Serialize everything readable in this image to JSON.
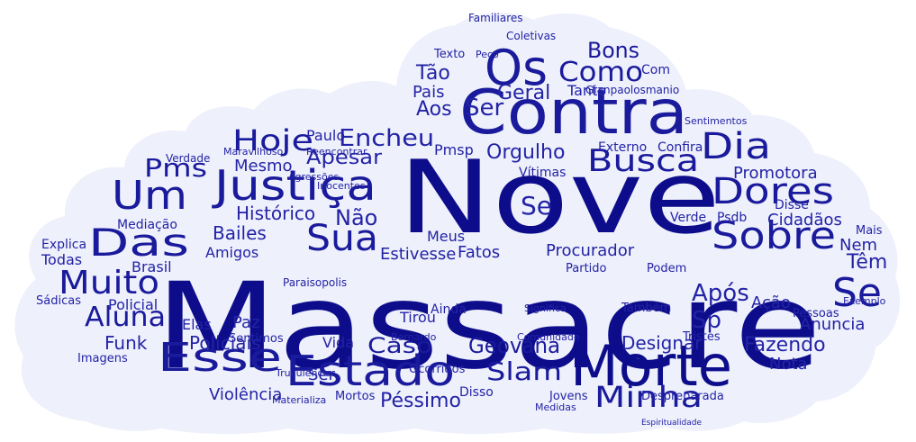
{
  "colors": {
    "background": "#ffffff",
    "cloud_fill": "#eef0fb",
    "word_dark": "#0d0d8c",
    "word_mid": "#2323a6",
    "word_light": "#3a3ab8"
  },
  "words": {
    "massacre": "Massacre",
    "nove": "Nove",
    "contra": "Contra",
    "os": "Os",
    "morte": "Morte",
    "esse": "Esse",
    "estado": "Estado",
    "justica": "Justiça",
    "das": "Das",
    "um": "Um",
    "muito": "Muito",
    "hoje": "Hoje",
    "aluna": "Aluna",
    "pms": "Pms",
    "sua": "Sua",
    "sobre": "Sobre",
    "dores": "Dores",
    "dia": "Dia",
    "busca": "Busca",
    "como": "Como",
    "bons": "Bons",
    "minha": "Minha",
    "geovana": "Geovana",
    "slam": "Slam",
    "caso": "Caso",
    "se": "Se",
    "ser": "Ser",
    "encheu": "Encheu",
    "apesar": "Apesar",
    "nao": "Não",
    "bailes": "Bailes",
    "historico": "Histórico",
    "funk": "Funk",
    "policiais": "Policiais",
    "violencia": "Violência",
    "pessimo": "Péssimo",
    "designar": "Designar",
    "fazendo": "Fazendo",
    "nota": "Nota",
    "apos": "Após",
    "sp": "Sp",
    "cidadaos": "Cidadãos",
    "tem": "Têm",
    "nem": "Nem",
    "anuncia": "Anuncia",
    "promotora": "Promotora",
    "mesmo": "Mesmo",
    "paulo": "Paulo",
    "orgulho": "Orgulho",
    "pmsp": "Pmsp",
    "tao": "Tão",
    "pais": "Pais",
    "aos": "Aos",
    "geral": "Geral",
    "tanto": "Tanto",
    "procurador": "Procurador",
    "fatos": "Fatos",
    "estivesse": "Estivesse",
    "meus": "Meus",
    "vida": "Vida",
    "amigos": "Amigos",
    "policial": "Policial",
    "brasil": "Brasil",
    "todas": "Todas",
    "explica": "Explica",
    "mediacao": "Mediação",
    "elas": "Elas",
    "paz": "Paz",
    "tirou": "Tirou",
    "ainda": "Ainda",
    "imagens": "Imagens",
    "sentimos": "Sentimos",
    "acao": "Ação",
    "verde": "Verde",
    "psdb": "Psdb",
    "mais": "Mais",
    "partido": "Partido",
    "podem": "Podem",
    "tambem": "Também",
    "tristes": "Tristes",
    "jovens": "Jovens",
    "pessoas": "Pessoas",
    "externo": "Externo",
    "confira": "Confira",
    "vitimas": "Vítimas",
    "mortos": "Mortos",
    "disso": "Disso",
    "texto": "Texto",
    "peco": "Peço",
    "com": "Com",
    "coletivas": "Coletivas",
    "familiares": "Familiares",
    "gianpaolosmanio": "Gianpaolosmanio",
    "disse": "Disse",
    "sadicas": "Sádicas",
    "verdade": "Verdade",
    "agressoes": "Agressões",
    "reencontrar": "Reencontrar",
    "inocentes": "Inocentes",
    "maravilhoso": "Maravilhoso",
    "truculencia": "Truculência",
    "materializa": "Materializa",
    "medidas": "Medidas",
    "ocorridos": "Ocorridos",
    "paraisopolis": "Paraisopolis",
    "despreparada": "Despreparada",
    "comunidade": "Comunidade",
    "bernardo": "Bernardo",
    "espiritualidade": "Espiritualidade",
    "significa": "Significa",
    "exemplo": "Exemplo",
    "sentimentos": "Sentimentos"
  }
}
